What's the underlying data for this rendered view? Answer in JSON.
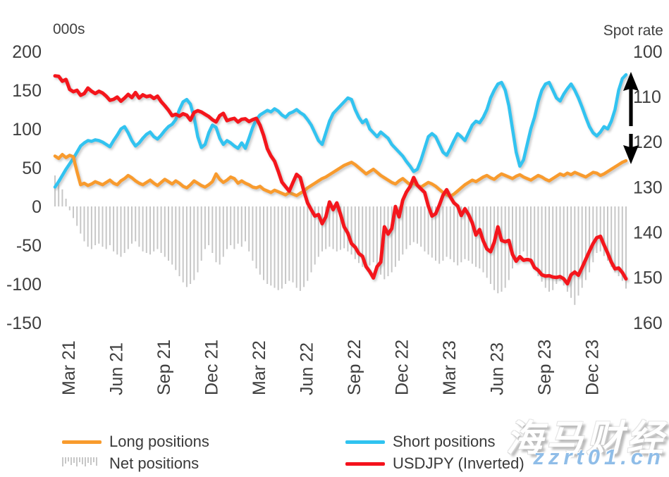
{
  "chart_data": {
    "type": "line",
    "title": "",
    "description": "Weekly FX positioning (000s of contracts, left axis) vs USDJPY spot rate (inverted, right axis), Mar 2021 - Feb 2024",
    "left_axis": {
      "title": "000s",
      "ticks": [
        200,
        150,
        100,
        50,
        0,
        -50,
        -100,
        -150
      ],
      "min": -150,
      "max": 200
    },
    "right_axis": {
      "title": "Spot rate",
      "ticks": [
        100,
        110,
        120,
        130,
        140,
        150,
        160
      ],
      "min": 100,
      "max": 160,
      "inverted": true
    },
    "x_axis": {
      "tick_labels": [
        "Mar 21",
        "Jun 21",
        "Sep 21",
        "Dec 21",
        "Mar 22",
        "Jun 22",
        "Sep 22",
        "Dec 22",
        "Mar 23",
        "Jun 23",
        "Sep 23",
        "Dec 23"
      ],
      "tick_week_positions": [
        3.7,
        16.7,
        29.7,
        42.7,
        55.7,
        68.7,
        81.7,
        94.7,
        107.7,
        120.7,
        133.7,
        146.7
      ],
      "unit": "weekly observations"
    },
    "grid": false,
    "legend_position": "bottom",
    "series": [
      {
        "name": "Long positions",
        "type": "line",
        "axis": "left",
        "color": "#F89B2D",
        "values": [
          65,
          62,
          67,
          63,
          66,
          64,
          45,
          28,
          30,
          27,
          29,
          32,
          30,
          28,
          31,
          34,
          30,
          28,
          33,
          36,
          40,
          37,
          33,
          30,
          28,
          31,
          34,
          30,
          27,
          31,
          35,
          32,
          29,
          33,
          30,
          26,
          24,
          28,
          33,
          30,
          27,
          25,
          28,
          32,
          42,
          35,
          31,
          34,
          38,
          36,
          30,
          33,
          30,
          28,
          25,
          24,
          26,
          22,
          20,
          18,
          21,
          19,
          17,
          15,
          18,
          16,
          14,
          17,
          20,
          24,
          27,
          30,
          33,
          36,
          38,
          41,
          44,
          47,
          50,
          53,
          55,
          57,
          54,
          50,
          46,
          42,
          45,
          48,
          44,
          40,
          37,
          34,
          31,
          29,
          33,
          36,
          32,
          28,
          30,
          27,
          25,
          28,
          31,
          29,
          26,
          22,
          18,
          15,
          13,
          16,
          20,
          24,
          28,
          31,
          34,
          32,
          35,
          38,
          40,
          37,
          35,
          39,
          42,
          40,
          38,
          36,
          39,
          41,
          38,
          36,
          34,
          37,
          40,
          38,
          35,
          33,
          36,
          39,
          42,
          40,
          43,
          41,
          44,
          42,
          40,
          38,
          41,
          44,
          43,
          40,
          42,
          45,
          48,
          51,
          54,
          57,
          59
        ]
      },
      {
        "name": "Short positions",
        "type": "line",
        "axis": "left",
        "color": "#30C3F0",
        "values": [
          25,
          32,
          40,
          48,
          55,
          62,
          70,
          78,
          82,
          85,
          84,
          86,
          85,
          83,
          80,
          77,
          85,
          92,
          100,
          103,
          95,
          85,
          78,
          82,
          88,
          93,
          96,
          90,
          87,
          92,
          98,
          103,
          106,
          112,
          125,
          135,
          138,
          132,
          115,
          90,
          76,
          80,
          95,
          105,
          102,
          88,
          80,
          85,
          82,
          78,
          75,
          82,
          75,
          88,
          102,
          112,
          118,
          121,
          124,
          122,
          126,
          123,
          118,
          115,
          120,
          122,
          125,
          121,
          118,
          112,
          105,
          95,
          85,
          80,
          95,
          110,
          120,
          125,
          130,
          135,
          140,
          138,
          125,
          115,
          108,
          112,
          100,
          95,
          90,
          96,
          92,
          88,
          80,
          75,
          70,
          65,
          58,
          52,
          45,
          48,
          60,
          75,
          90,
          94,
          90,
          80,
          70,
          66,
          75,
          85,
          94,
          90,
          85,
          95,
          105,
          110,
          108,
          115,
          125,
          140,
          150,
          158,
          160,
          150,
          130,
          100,
          70,
          52,
          60,
          80,
          100,
          115,
          135,
          150,
          158,
          160,
          150,
          140,
          136,
          145,
          152,
          158,
          150,
          140,
          128,
          115,
          103,
          95,
          91,
          96,
          103,
          100,
          110,
          125,
          150,
          165,
          170
        ]
      },
      {
        "name": "Net positions",
        "type": "bar",
        "axis": "left",
        "color": "#C7C7C7",
        "values": [
          40,
          35,
          22,
          10,
          -5,
          -15,
          -25,
          -35,
          -45,
          -52,
          -55,
          -50,
          -48,
          -52,
          -55,
          -50,
          -58,
          -62,
          -65,
          -60,
          -55,
          -48,
          -45,
          -52,
          -58,
          -60,
          -62,
          -58,
          -55,
          -60,
          -65,
          -70,
          -75,
          -82,
          -90,
          -98,
          -104,
          -100,
          -95,
          -85,
          -70,
          -55,
          -50,
          -60,
          -72,
          -75,
          -65,
          -55,
          -50,
          -55,
          -48,
          -52,
          -45,
          -58,
          -70,
          -80,
          -88,
          -95,
          -100,
          -102,
          -105,
          -108,
          -106,
          -100,
          -96,
          -98,
          -105,
          -109,
          -104,
          -96,
          -85,
          -75,
          -65,
          -58,
          -55,
          -52,
          -55,
          -58,
          -56,
          -54,
          -58,
          -62,
          -68,
          -73,
          -78,
          -80,
          -76,
          -72,
          -80,
          -88,
          -94,
          -90,
          -85,
          -78,
          -70,
          -62,
          -55,
          -50,
          -46,
          -48,
          -52,
          -58,
          -62,
          -66,
          -70,
          -74,
          -70,
          -65,
          -68,
          -72,
          -76,
          -72,
          -68,
          -70,
          -74,
          -78,
          -80,
          -85,
          -92,
          -100,
          -108,
          -112,
          -110,
          -105,
          -95,
          -80,
          -70,
          -62,
          -58,
          -65,
          -72,
          -80,
          -90,
          -97,
          -105,
          -110,
          -108,
          -100,
          -96,
          -102,
          -110,
          -118,
          -127,
          -115,
          -105,
          -95,
          -85,
          -72,
          -60,
          -58,
          -64,
          -70,
          -78,
          -85,
          -90,
          -96,
          -106
        ]
      },
      {
        "name": "USDJPY (Inverted)",
        "type": "line",
        "axis": "right",
        "color": "#F4121C",
        "values": [
          105.4,
          105.5,
          106.6,
          106.2,
          108.4,
          108.9,
          108.6,
          109.7,
          109.3,
          108.1,
          108.8,
          109.3,
          108.8,
          109.2,
          109.9,
          110.8,
          110.6,
          110.1,
          111.0,
          110.3,
          109.5,
          110.2,
          109.1,
          110.3,
          109.6,
          110.0,
          109.8,
          110.4,
          109.9,
          111.1,
          112.0,
          113.0,
          114.2,
          113.9,
          114.3,
          113.8,
          114.1,
          115.2,
          113.5,
          113.1,
          113.4,
          113.9,
          114.4,
          115.1,
          115.6,
          114.2,
          113.7,
          115.3,
          115.0,
          114.8,
          115.6,
          115.0,
          114.9,
          115.5,
          115.1,
          114.8,
          116.3,
          118.6,
          121.5,
          123.1,
          124.3,
          126.5,
          128.9,
          129.9,
          130.9,
          129.0,
          127.2,
          127.9,
          130.9,
          133.5,
          135.0,
          136.4,
          136.1,
          138.1,
          136.6,
          133.3,
          135.0,
          133.5,
          136.0,
          138.8,
          140.2,
          142.5,
          143.3,
          144.7,
          145.3,
          147.6,
          148.7,
          150.1,
          147.6,
          146.6,
          138.8,
          140.4,
          139.2,
          134.3,
          136.6,
          132.9,
          131.1,
          129.9,
          127.9,
          129.6,
          130.4,
          131.2,
          134.2,
          136.4,
          135.9,
          134.0,
          131.8,
          130.6,
          132.2,
          133.5,
          134.2,
          136.3,
          134.8,
          136.1,
          137.9,
          140.6,
          139.4,
          141.9,
          143.7,
          144.3,
          142.2,
          138.8,
          141.8,
          142.1,
          141.8,
          144.9,
          146.4,
          145.4,
          146.2,
          146.0,
          146.2,
          147.8,
          148.4,
          149.4,
          149.7,
          149.6,
          149.9,
          150.0,
          149.8,
          150.3,
          151.4,
          149.4,
          148.8,
          149.5,
          147.8,
          146.0,
          144.2,
          142.5,
          141.2,
          140.9,
          142.8,
          144.6,
          146.6,
          148.1,
          147.9,
          148.9,
          150.3
        ]
      }
    ],
    "legend": [
      {
        "label": "Long positions",
        "color": "#F89B2D",
        "swatch": "line"
      },
      {
        "label": "Net positions",
        "color": "#C7C7C7",
        "swatch": "bars"
      },
      {
        "label": "Short positions",
        "color": "#30C3F0",
        "swatch": "line"
      },
      {
        "label": "USDJPY (Inverted)",
        "color": "#F4121C",
        "swatch": "line"
      }
    ],
    "annotations": [
      {
        "type": "vertical-double-arrow",
        "color": "#000000",
        "location": "right edge, spans roughly 110 to 125 on the inverted spot-rate axis"
      }
    ],
    "text_color": "#3F3F3F"
  },
  "watermark": {
    "line1": "海马财经",
    "line2": "zzrt01.cn",
    "color": "#8FBDE8"
  }
}
